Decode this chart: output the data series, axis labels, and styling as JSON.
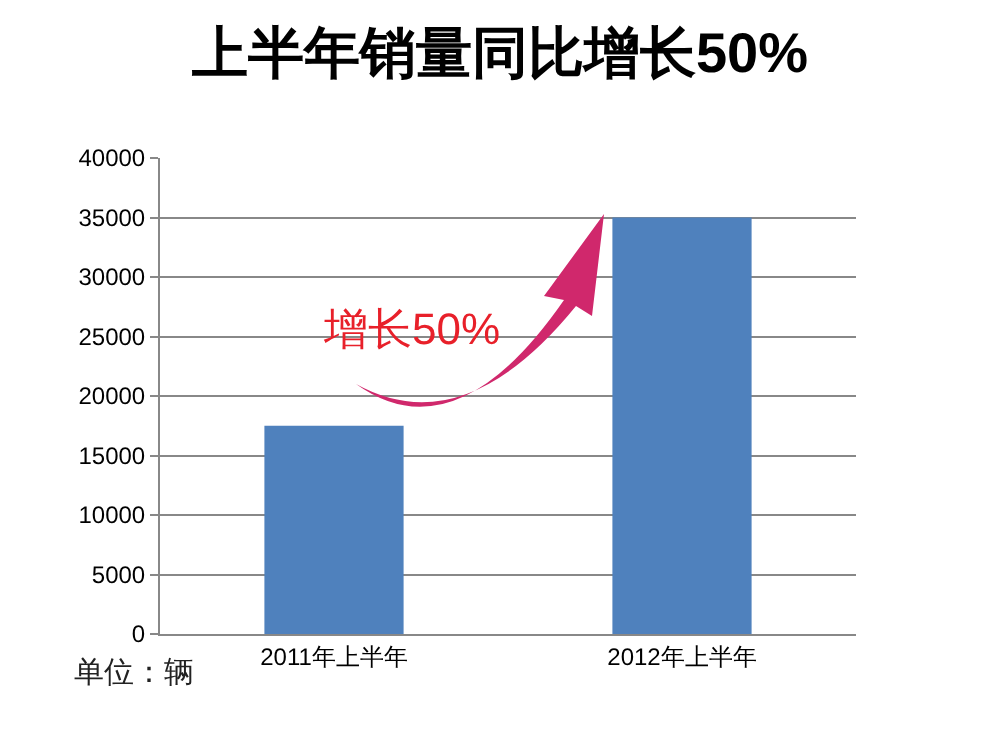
{
  "chart_data": {
    "type": "bar",
    "title": "上半年销量同比增长50%",
    "categories": [
      "2011年上半年",
      "2012年上半年"
    ],
    "values": [
      17500,
      35000
    ],
    "color": "#4f81bd",
    "ylim": [
      0,
      40000
    ],
    "yticks": [
      0,
      5000,
      10000,
      15000,
      20000,
      25000,
      30000,
      35000,
      40000
    ],
    "grid": "y",
    "annotations": [
      "增长50%",
      "单位：辆"
    ]
  }
}
